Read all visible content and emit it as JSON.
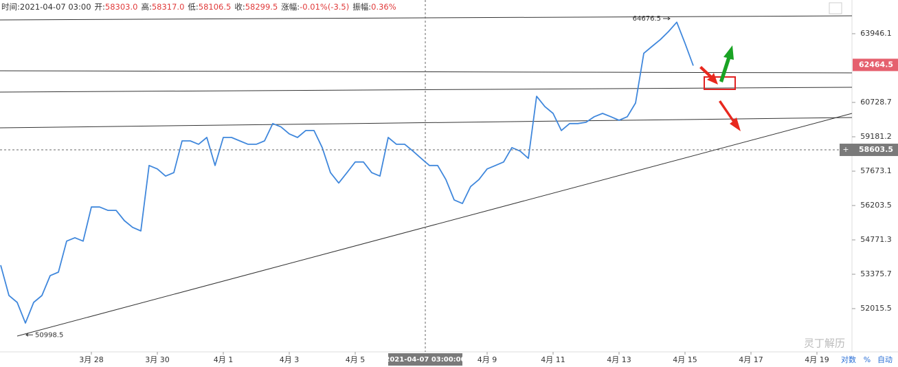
{
  "chart_data": {
    "type": "line",
    "header": [
      {
        "label": "时间:",
        "value": "2021-04-07 03:00"
      },
      {
        "label": "开:",
        "value": "58303.0"
      },
      {
        "label": "高:",
        "value": "58317.0"
      },
      {
        "label": "低:",
        "value": "58106.5"
      },
      {
        "label": "收:",
        "value": "58299.5"
      },
      {
        "label": "涨幅:",
        "value": "-0.01%(-3.5)"
      },
      {
        "label": "振幅:",
        "value": "0.36%"
      }
    ],
    "categories": [
      null,
      null,
      null,
      null,
      null,
      null,
      null,
      null,
      null,
      null,
      null,
      "3月 28",
      null,
      null,
      null,
      null,
      null,
      null,
      null,
      "3月 30",
      null,
      null,
      null,
      null,
      null,
      null,
      null,
      "4月 1",
      null,
      null,
      null,
      null,
      null,
      null,
      null,
      "4月 3",
      null,
      null,
      null,
      null,
      null,
      null,
      null,
      "4月 5",
      null,
      null,
      null,
      null,
      null,
      null,
      null,
      null,
      null,
      null,
      null,
      null,
      null,
      null,
      null,
      "4月 9",
      null,
      null,
      null,
      null,
      null,
      null,
      null,
      "4月 11",
      null,
      null,
      null,
      null,
      null,
      null,
      null,
      "4月 13",
      null,
      null,
      null,
      null,
      null,
      null,
      null,
      "4月 15",
      null,
      null,
      null,
      null,
      null,
      null,
      null,
      "4月 17",
      null,
      null,
      null,
      null,
      null,
      null,
      null,
      "4月 19",
      null,
      null,
      null
    ],
    "series": [
      {
        "color": "#3f87dc",
        "values": [
          53740,
          52533,
          52260,
          51453,
          52260,
          52530,
          53320,
          53460,
          54720,
          54860,
          54720,
          56140,
          56140,
          56000,
          56000,
          55570,
          55290,
          55140,
          57920,
          57770,
          57460,
          57610,
          59000,
          59000,
          58850,
          59150,
          57920,
          59150,
          59150,
          59000,
          58850,
          58850,
          59000,
          59770,
          59620,
          59310,
          59150,
          59460,
          59460,
          58700,
          57610,
          57160,
          57610,
          58070,
          58070,
          57610,
          57460,
          59150,
          58850,
          58850,
          58550,
          58230,
          57920,
          57920,
          57310,
          56440,
          56290,
          57010,
          57310,
          57770,
          57920,
          58070,
          58700,
          58550,
          58230,
          61010,
          60540,
          60230,
          59460,
          59770,
          59770,
          59830,
          60080,
          60230,
          60080,
          59920,
          60080,
          60700,
          63010,
          63340,
          63660,
          64050,
          64500,
          63490,
          62430,
          null,
          null,
          null,
          null,
          null,
          null,
          null,
          null,
          null,
          null,
          null,
          null,
          null,
          null,
          null,
          null,
          null,
          null
        ]
      }
    ],
    "ylim": [
      50404,
      65585
    ],
    "log_scale": true,
    "yticks": [
      52015.5,
      53375.7,
      54771.3,
      56203.5,
      57673.1,
      59181.2,
      60728.7,
      63946.1
    ],
    "high_mark": 64676.5,
    "low_mark": 50998.5,
    "last_price": 62464.5,
    "crosshair": {
      "time": "2021-04-07 03:00:00",
      "price": 58603.5
    },
    "controls": [
      "对数",
      "%",
      "自动"
    ],
    "watermark": "灵丁解历"
  }
}
